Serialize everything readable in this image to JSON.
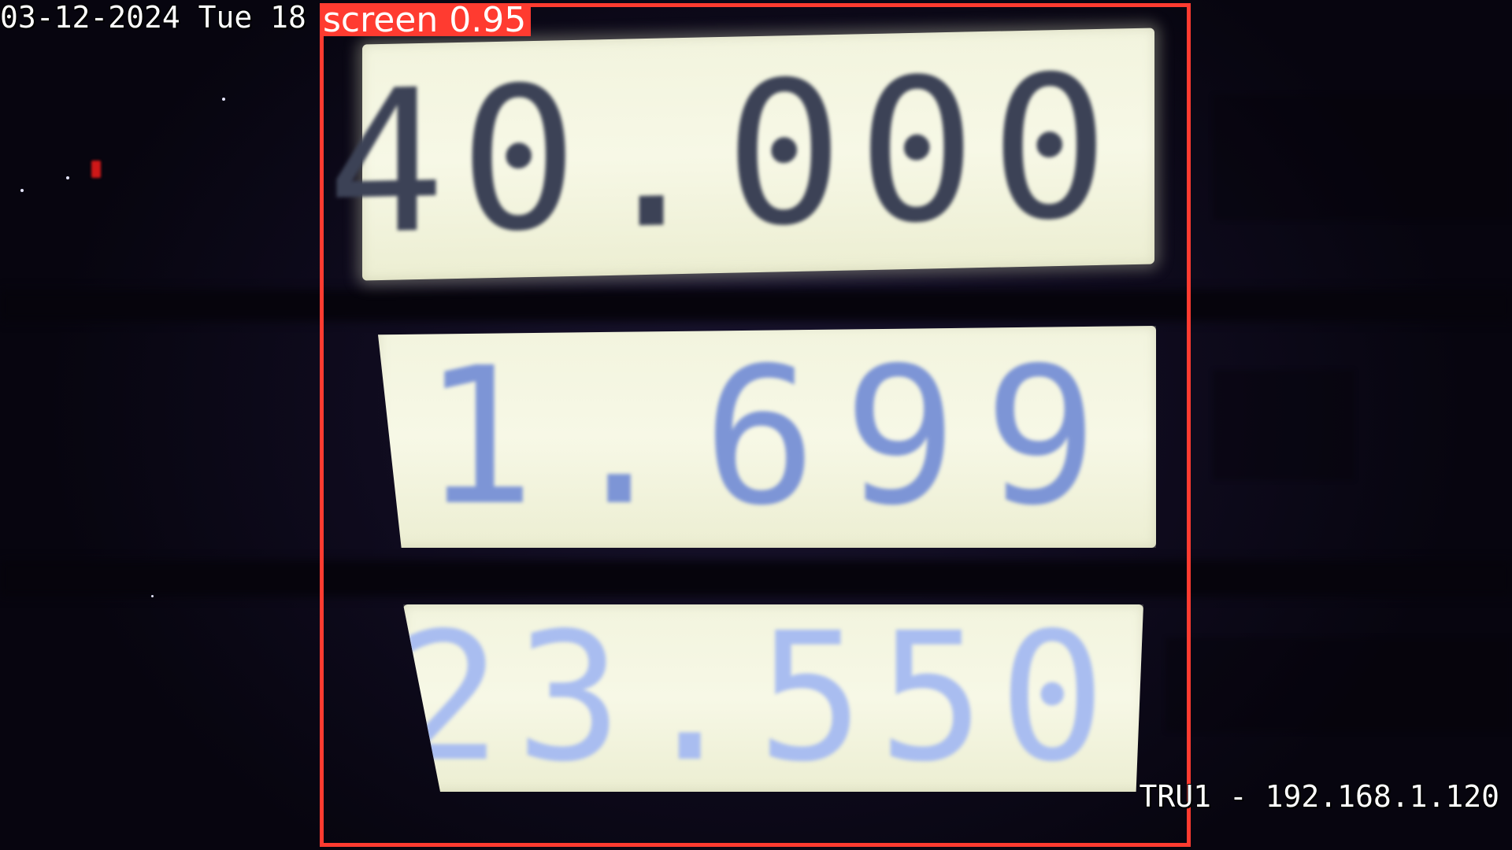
{
  "osd": {
    "timestamp": "03-12-2024 Tue 18",
    "camera": "TRU1 - 192.168.1.120"
  },
  "detection": {
    "label": "screen 0.95",
    "color": "#ff3b30"
  },
  "pump_display": {
    "total_amount": "40.000",
    "volume": "1.699",
    "unit_price": "23.550",
    "colors": {
      "total_amount": "#3c4256",
      "volume": "#7d95d6",
      "unit_price": "#a9bdf0"
    }
  },
  "icons": [
    "red-indicator-light-icon"
  ]
}
